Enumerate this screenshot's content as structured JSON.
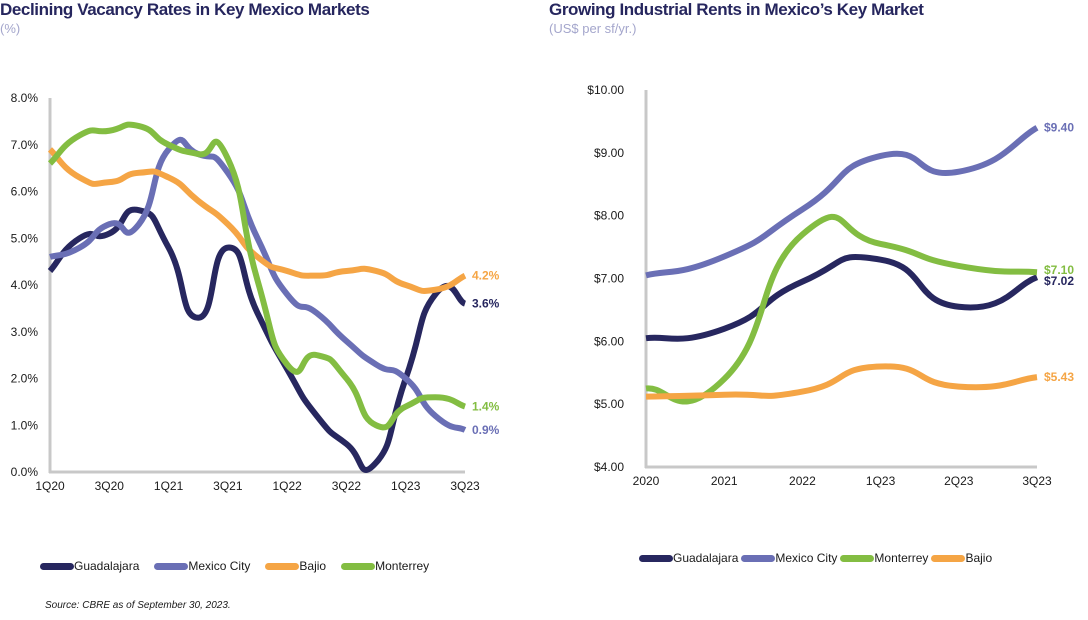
{
  "colors": {
    "Guadalajara": "#27275f",
    "Mexico City": "#6a6fb5",
    "Bajio": "#f5a545",
    "Monterrey": "#83bd42",
    "axis": "#c8c8c8",
    "title": "#26265e",
    "subtitle": "#a4a6cc"
  },
  "left": {
    "title": "Declining Vacancy Rates in Key Mexico Markets",
    "subtitle": "(%)",
    "legend": [
      "Guadalajara",
      "Mexico City",
      "Bajio",
      "Monterrey"
    ]
  },
  "right": {
    "title": "Growing Industrial Rents in Mexico’s Key Market",
    "subtitle": "(US$ per sf/yr.)",
    "legend": [
      "Guadalajara",
      "Mexico City",
      "Monterrey",
      "Bajio"
    ]
  },
  "source": "Source: CBRE as of September 30, 2023.",
  "chart_data": [
    {
      "type": "line",
      "title": "Declining Vacancy Rates in Key Mexico Markets",
      "subtitle": "(%)",
      "xlabel": "",
      "ylabel": "",
      "x": [
        "1Q20",
        "2Q20",
        "3Q20",
        "4Q20",
        "1Q21",
        "2Q21",
        "3Q21",
        "4Q21",
        "1Q22",
        "2Q22",
        "3Q22",
        "4Q22",
        "1Q23",
        "2Q23",
        "3Q23"
      ],
      "x_tick_labels": [
        "1Q20",
        "3Q20",
        "1Q21",
        "3Q21",
        "1Q22",
        "3Q22",
        "1Q23",
        "3Q23"
      ],
      "ylim": [
        0,
        8
      ],
      "y_ticks": [
        0,
        1,
        2,
        3,
        4,
        5,
        6,
        7,
        8
      ],
      "y_tick_labels": [
        "0.0%",
        "1.0%",
        "2.0%",
        "3.0%",
        "4.0%",
        "5.0%",
        "6.0%",
        "7.0%",
        "8.0%"
      ],
      "grid": false,
      "legend_position": "bottom",
      "series": [
        {
          "name": "Guadalajara",
          "values": [
            4.3,
            5.0,
            5.1,
            5.6,
            4.8,
            3.3,
            4.8,
            3.4,
            2.2,
            1.2,
            0.6,
            0.2,
            2.0,
            3.8,
            3.6
          ],
          "end_label": "3.6%"
        },
        {
          "name": "Mexico City",
          "values": [
            4.6,
            4.8,
            5.3,
            5.3,
            6.9,
            6.8,
            6.4,
            5.0,
            3.8,
            3.4,
            2.8,
            2.3,
            2.0,
            1.2,
            0.9
          ],
          "end_label": "0.9%"
        },
        {
          "name": "Bajio",
          "values": [
            6.9,
            6.3,
            6.2,
            6.4,
            6.3,
            5.8,
            5.3,
            4.6,
            4.3,
            4.2,
            4.3,
            4.3,
            4.0,
            3.9,
            4.2
          ],
          "end_label": "4.2%"
        },
        {
          "name": "Monterrey",
          "values": [
            6.6,
            7.2,
            7.3,
            7.4,
            7.0,
            6.8,
            6.7,
            4.1,
            2.3,
            2.5,
            2.0,
            1.0,
            1.4,
            1.6,
            1.4
          ],
          "end_label": "1.4%"
        }
      ]
    },
    {
      "type": "line",
      "title": "Growing Industrial Rents in Mexico’s Key Market",
      "subtitle": "(US$ per sf/yr.)",
      "xlabel": "",
      "ylabel": "",
      "x": [
        "2020",
        "2021",
        "2022",
        "1Q23",
        "2Q23",
        "3Q23"
      ],
      "x_tick_labels": [
        "2020",
        "2021",
        "2022",
        "1Q23",
        "2Q23",
        "3Q23"
      ],
      "ylim": [
        4,
        10
      ],
      "y_ticks": [
        4,
        5,
        6,
        7,
        8,
        9,
        10
      ],
      "y_tick_labels": [
        "$4.00",
        "$5.00",
        "$6.00",
        "$7.00",
        "$8.00",
        "$9.00",
        "$10.00"
      ],
      "grid": false,
      "legend_position": "bottom",
      "series": [
        {
          "name": "Guadalajara",
          "values": [
            6.05,
            6.2,
            6.95,
            7.3,
            6.55,
            7.02
          ],
          "end_label": "$7.02"
        },
        {
          "name": "Mexico City",
          "values": [
            7.05,
            7.35,
            8.1,
            8.95,
            8.7,
            9.4
          ],
          "end_label": "$9.40"
        },
        {
          "name": "Monterrey",
          "values": [
            5.25,
            5.4,
            7.7,
            7.55,
            7.2,
            7.1
          ],
          "end_label": "$7.10"
        },
        {
          "name": "Bajio",
          "values": [
            5.12,
            5.15,
            5.2,
            5.6,
            5.28,
            5.43
          ],
          "end_label": "$5.43"
        }
      ]
    }
  ]
}
